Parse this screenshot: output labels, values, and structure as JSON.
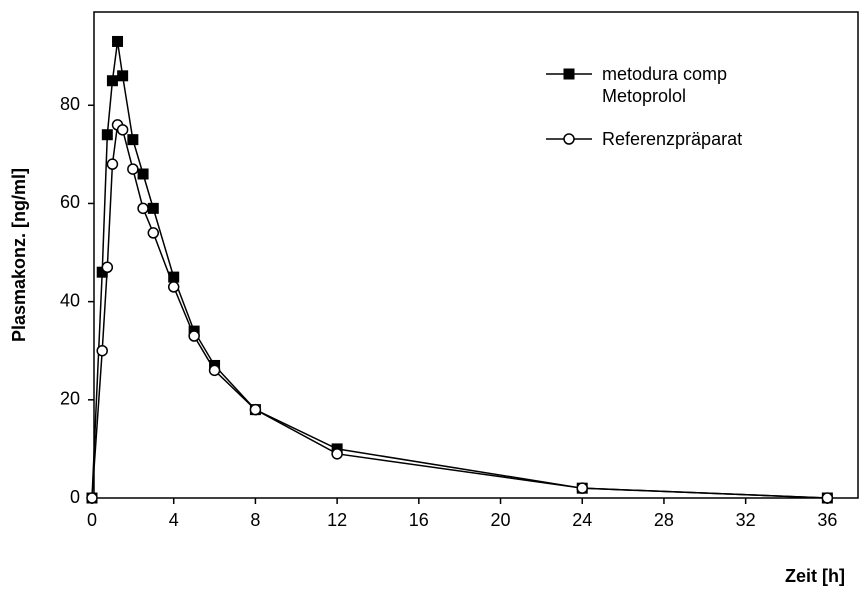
{
  "chart_data": {
    "type": "line",
    "x_label": "Zeit [h]",
    "y_label": "Plasmakonz. [ng/ml]",
    "xlim": [
      0,
      37.5
    ],
    "ylim": [
      0,
      99
    ],
    "xticks": [
      0,
      4,
      8,
      12,
      16,
      20,
      24,
      28,
      32,
      36
    ],
    "yticks": [
      0,
      20,
      40,
      60,
      80
    ],
    "series": [
      {
        "name": "metodura comp\nMetoprolol",
        "color": "#000000",
        "marker": "filled-square",
        "x": [
          0,
          0.5,
          0.75,
          1,
          1.25,
          1.5,
          2,
          2.5,
          3,
          4,
          5,
          6,
          8,
          12,
          24,
          36
        ],
        "values": [
          0,
          46,
          74,
          85,
          93,
          86,
          73,
          66,
          59,
          45,
          34,
          27,
          18,
          10,
          2,
          0
        ]
      },
      {
        "name": "Referenzpräparat",
        "color": "#000000",
        "marker": "open-circle",
        "x": [
          0,
          0.5,
          0.75,
          1,
          1.25,
          1.5,
          2,
          2.5,
          3,
          4,
          5,
          6,
          8,
          12,
          24,
          36
        ],
        "values": [
          0,
          30,
          47,
          68,
          76,
          75,
          67,
          59,
          54,
          43,
          33,
          26,
          18,
          9,
          2,
          0
        ]
      }
    ]
  }
}
